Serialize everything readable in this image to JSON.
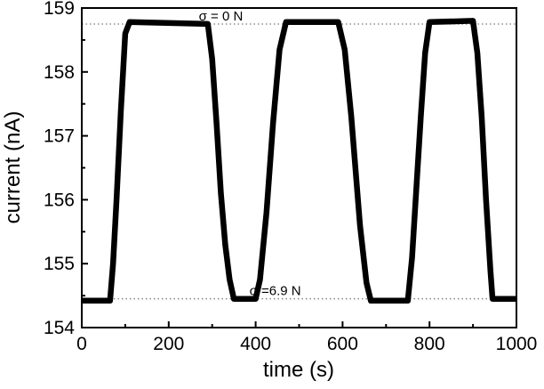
{
  "chart_data": {
    "type": "line",
    "xlabel": "time (s)",
    "ylabel": "current (nA)",
    "xlim": [
      0,
      1000
    ],
    "ylim": [
      154,
      159
    ],
    "xticks": [
      0,
      200,
      400,
      600,
      800,
      1000
    ],
    "yticks": [
      154,
      155,
      156,
      157,
      158,
      159
    ],
    "xtick_labels": [
      "0",
      "200",
      "400",
      "600",
      "800",
      "1000"
    ],
    "ytick_labels": [
      "154",
      "155",
      "156",
      "157",
      "158",
      "159"
    ],
    "grid": false,
    "reference_lines": [
      {
        "y": 158.75,
        "label": "σ = 0 N",
        "label_x": 320
      },
      {
        "y": 154.45,
        "label": "σ =6.9 N",
        "label_x": 445
      }
    ],
    "series": [
      {
        "x": [
          0,
          65,
          72,
          80,
          90,
          100,
          110,
          290,
          300,
          310,
          320,
          330,
          340,
          350,
          400,
          410,
          425,
          440,
          455,
          470,
          590,
          605,
          620,
          640,
          655,
          665,
          750,
          760,
          770,
          780,
          790,
          800,
          900,
          910,
          920,
          930,
          940,
          945,
          1000
        ],
        "y": [
          154.42,
          154.42,
          155.0,
          156.0,
          157.4,
          158.6,
          158.78,
          158.75,
          158.2,
          157.2,
          156.1,
          155.3,
          154.75,
          154.45,
          154.45,
          154.75,
          155.8,
          157.2,
          158.35,
          158.78,
          158.78,
          158.35,
          157.3,
          155.6,
          154.7,
          154.42,
          154.42,
          155.1,
          156.2,
          157.3,
          158.3,
          158.78,
          158.8,
          158.3,
          157.3,
          156.0,
          154.9,
          154.45,
          154.45
        ]
      }
    ]
  }
}
